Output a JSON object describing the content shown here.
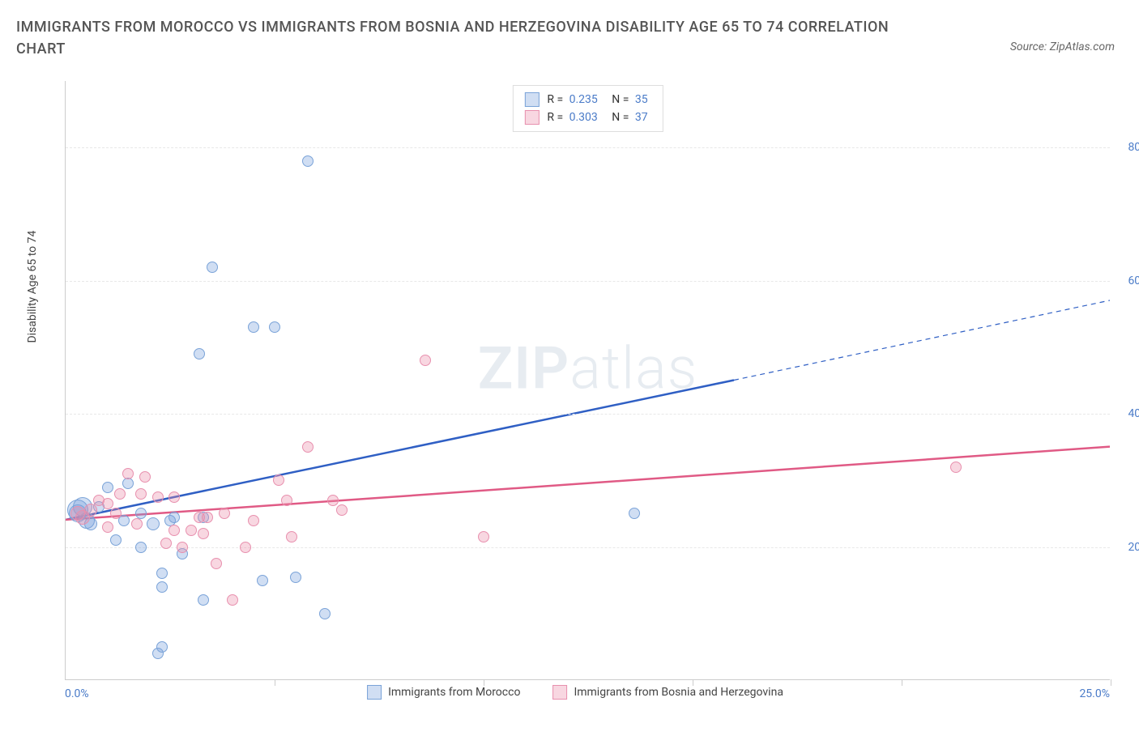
{
  "title": "IMMIGRANTS FROM MOROCCO VS IMMIGRANTS FROM BOSNIA AND HERZEGOVINA DISABILITY AGE 65 TO 74 CORRELATION CHART",
  "source": "Source: ZipAtlas.com",
  "watermark_a": "ZIP",
  "watermark_b": "atlas",
  "chart": {
    "type": "scatter",
    "y_label": "Disability Age 65 to 74",
    "xlim": [
      0,
      25
    ],
    "ylim": [
      0,
      90
    ],
    "x_min_label": "0.0%",
    "x_max_label": "25.0%",
    "y_ticks": [
      {
        "v": 20,
        "label": "20.0%"
      },
      {
        "v": 40,
        "label": "40.0%"
      },
      {
        "v": 60,
        "label": "60.0%"
      },
      {
        "v": 80,
        "label": "80.0%"
      }
    ],
    "x_tick_positions": [
      5,
      10,
      15,
      20,
      25
    ],
    "background_color": "#ffffff",
    "grid_color": "#e8e8e8",
    "series": [
      {
        "name": "Immigrants from Morocco",
        "color_fill": "rgba(120,160,220,0.35)",
        "color_stroke": "#7aa3d8",
        "marker_radius": 7,
        "trend_color": "#2f5fc4",
        "trend_width": 2.5,
        "R": "0.235",
        "N": "35",
        "trend": {
          "x1": 0,
          "y1": 24,
          "x2": 16,
          "y2": 45,
          "x2_ext": 25,
          "y2_ext": 57
        },
        "points": [
          {
            "x": 0.3,
            "y": 25,
            "r": 11
          },
          {
            "x": 0.3,
            "y": 25.5,
            "r": 13
          },
          {
            "x": 0.4,
            "y": 26,
            "r": 12
          },
          {
            "x": 0.5,
            "y": 24,
            "r": 10
          },
          {
            "x": 0.6,
            "y": 23.5,
            "r": 8
          },
          {
            "x": 0.8,
            "y": 26,
            "r": 7
          },
          {
            "x": 1.0,
            "y": 29,
            "r": 7
          },
          {
            "x": 1.2,
            "y": 21,
            "r": 7
          },
          {
            "x": 1.4,
            "y": 24,
            "r": 7
          },
          {
            "x": 1.5,
            "y": 29.5,
            "r": 7
          },
          {
            "x": 1.8,
            "y": 20,
            "r": 7
          },
          {
            "x": 1.8,
            "y": 25,
            "r": 7
          },
          {
            "x": 2.1,
            "y": 23.5,
            "r": 8
          },
          {
            "x": 2.2,
            "y": 4,
            "r": 7
          },
          {
            "x": 2.3,
            "y": 5,
            "r": 7
          },
          {
            "x": 2.3,
            "y": 14,
            "r": 7
          },
          {
            "x": 2.3,
            "y": 16,
            "r": 7
          },
          {
            "x": 2.5,
            "y": 24,
            "r": 7
          },
          {
            "x": 2.6,
            "y": 24.5,
            "r": 7
          },
          {
            "x": 2.8,
            "y": 19,
            "r": 7
          },
          {
            "x": 3.2,
            "y": 49,
            "r": 7
          },
          {
            "x": 3.3,
            "y": 12,
            "r": 7
          },
          {
            "x": 3.3,
            "y": 24.5,
            "r": 7
          },
          {
            "x": 3.5,
            "y": 62,
            "r": 7
          },
          {
            "x": 4.5,
            "y": 53,
            "r": 7
          },
          {
            "x": 4.7,
            "y": 15,
            "r": 7
          },
          {
            "x": 5.0,
            "y": 53,
            "r": 7
          },
          {
            "x": 5.5,
            "y": 15.5,
            "r": 7
          },
          {
            "x": 5.8,
            "y": 78,
            "r": 7
          },
          {
            "x": 6.2,
            "y": 10,
            "r": 7
          },
          {
            "x": 13.6,
            "y": 25,
            "r": 7
          }
        ]
      },
      {
        "name": "Immigrants from Bosnia and Herzegovina",
        "color_fill": "rgba(235,140,170,0.35)",
        "color_stroke": "#e890ae",
        "marker_radius": 7,
        "trend_color": "#e05a85",
        "trend_width": 2.5,
        "R": "0.303",
        "N": "37",
        "trend": {
          "x1": 0,
          "y1": 24,
          "x2": 25,
          "y2": 35,
          "x2_ext": 25,
          "y2_ext": 35
        },
        "points": [
          {
            "x": 0.3,
            "y": 25,
            "r": 9
          },
          {
            "x": 0.4,
            "y": 24.5,
            "r": 9
          },
          {
            "x": 0.6,
            "y": 25.5,
            "r": 8
          },
          {
            "x": 0.8,
            "y": 27,
            "r": 7
          },
          {
            "x": 1.0,
            "y": 23,
            "r": 7
          },
          {
            "x": 1.0,
            "y": 26.5,
            "r": 7
          },
          {
            "x": 1.2,
            "y": 25,
            "r": 7
          },
          {
            "x": 1.3,
            "y": 28,
            "r": 7
          },
          {
            "x": 1.5,
            "y": 31,
            "r": 7
          },
          {
            "x": 1.7,
            "y": 23.5,
            "r": 7
          },
          {
            "x": 1.8,
            "y": 28,
            "r": 7
          },
          {
            "x": 1.9,
            "y": 30.5,
            "r": 7
          },
          {
            "x": 2.2,
            "y": 27.5,
            "r": 7
          },
          {
            "x": 2.4,
            "y": 20.5,
            "r": 7
          },
          {
            "x": 2.6,
            "y": 22.5,
            "r": 7
          },
          {
            "x": 2.6,
            "y": 27.5,
            "r": 7
          },
          {
            "x": 2.8,
            "y": 20,
            "r": 7
          },
          {
            "x": 3.0,
            "y": 22.5,
            "r": 7
          },
          {
            "x": 3.2,
            "y": 24.5,
            "r": 7
          },
          {
            "x": 3.3,
            "y": 22,
            "r": 7
          },
          {
            "x": 3.4,
            "y": 24.5,
            "r": 7
          },
          {
            "x": 3.6,
            "y": 17.5,
            "r": 7
          },
          {
            "x": 3.8,
            "y": 25,
            "r": 7
          },
          {
            "x": 4.0,
            "y": 12,
            "r": 7
          },
          {
            "x": 4.3,
            "y": 20,
            "r": 7
          },
          {
            "x": 4.5,
            "y": 24,
            "r": 7
          },
          {
            "x": 5.1,
            "y": 30,
            "r": 7
          },
          {
            "x": 5.3,
            "y": 27,
            "r": 7
          },
          {
            "x": 5.4,
            "y": 21.5,
            "r": 7
          },
          {
            "x": 5.8,
            "y": 35,
            "r": 7
          },
          {
            "x": 6.4,
            "y": 27,
            "r": 7
          },
          {
            "x": 6.6,
            "y": 25.5,
            "r": 7
          },
          {
            "x": 8.6,
            "y": 48,
            "r": 7
          },
          {
            "x": 10.0,
            "y": 21.5,
            "r": 7
          },
          {
            "x": 21.3,
            "y": 32,
            "r": 7
          }
        ]
      }
    ]
  }
}
